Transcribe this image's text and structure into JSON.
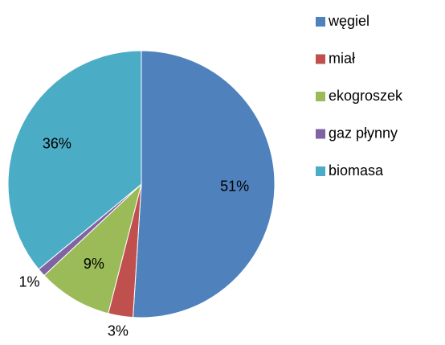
{
  "chart_data": {
    "type": "pie",
    "categories": [
      "węgiel",
      "miał",
      "ekogroszek",
      "gaz płynny",
      "biomasa"
    ],
    "values": [
      51,
      3,
      9,
      1,
      36
    ],
    "value_labels": [
      "51%",
      "3%",
      "9%",
      "1%",
      "36%"
    ],
    "colors": [
      "#4f81bd",
      "#c0504d",
      "#9bbb59",
      "#8064a2",
      "#4bacc6"
    ],
    "legend": "right"
  }
}
